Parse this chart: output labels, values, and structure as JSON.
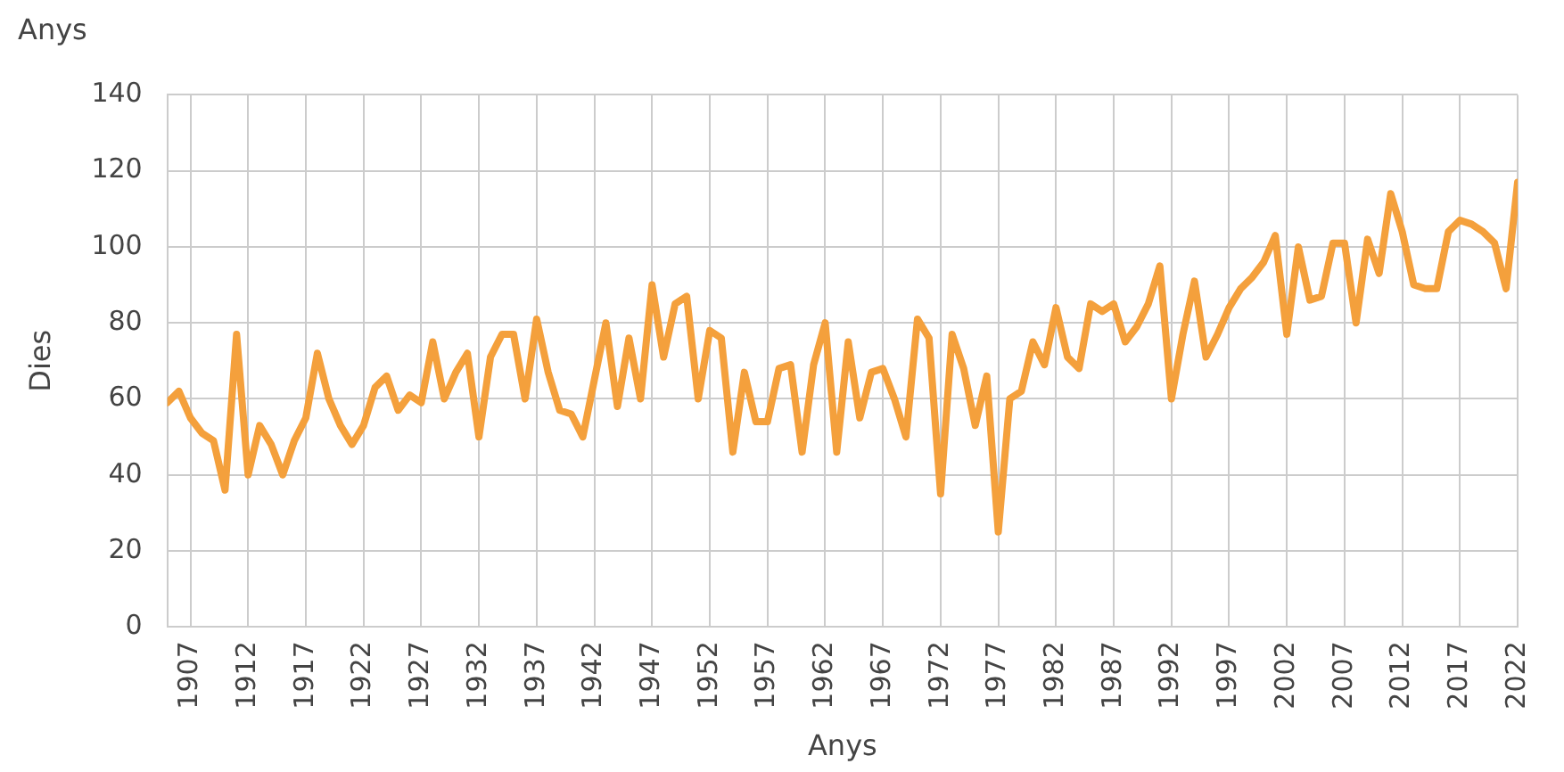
{
  "chart_data": {
    "type": "line",
    "title": "Anys",
    "xlabel": "Anys",
    "ylabel": "Dies",
    "xlim": [
      1905,
      2022
    ],
    "xticks": [
      1907,
      1912,
      1917,
      1922,
      1927,
      1932,
      1937,
      1942,
      1947,
      1952,
      1957,
      1962,
      1967,
      1972,
      1977,
      1982,
      1987,
      1992,
      1997,
      2002,
      2007,
      2012,
      2017,
      2022
    ],
    "ylim": [
      0,
      140
    ],
    "yticks": [
      0,
      20,
      40,
      60,
      80,
      100,
      120,
      140
    ],
    "grid": true,
    "legend": false,
    "marker": "none",
    "line_style": "solid",
    "series": [
      {
        "color": "#f4a03c",
        "x": [
          1905,
          1906,
          1907,
          1908,
          1909,
          1910,
          1911,
          1912,
          1913,
          1914,
          1915,
          1916,
          1917,
          1918,
          1919,
          1920,
          1921,
          1922,
          1923,
          1924,
          1925,
          1926,
          1927,
          1928,
          1929,
          1930,
          1931,
          1932,
          1933,
          1934,
          1935,
          1936,
          1937,
          1938,
          1939,
          1940,
          1941,
          1942,
          1943,
          1944,
          1945,
          1946,
          1947,
          1948,
          1949,
          1950,
          1951,
          1952,
          1953,
          1954,
          1955,
          1956,
          1957,
          1958,
          1959,
          1960,
          1961,
          1962,
          1963,
          1964,
          1965,
          1966,
          1967,
          1968,
          1969,
          1970,
          1971,
          1972,
          1973,
          1974,
          1975,
          1976,
          1977,
          1978,
          1979,
          1980,
          1981,
          1982,
          1983,
          1984,
          1985,
          1986,
          1987,
          1988,
          1989,
          1990,
          1991,
          1992,
          1993,
          1994,
          1995,
          1996,
          1997,
          1998,
          1999,
          2000,
          2001,
          2002,
          2003,
          2004,
          2005,
          2006,
          2007,
          2008,
          2009,
          2010,
          2011,
          2012,
          2013,
          2014,
          2015,
          2016,
          2017,
          2018,
          2019,
          2020,
          2021,
          2022
        ],
        "values": [
          59,
          62,
          55,
          51,
          49,
          36,
          77,
          40,
          53,
          48,
          40,
          49,
          55,
          72,
          60,
          53,
          48,
          53,
          63,
          66,
          57,
          61,
          59,
          75,
          60,
          67,
          72,
          50,
          71,
          77,
          77,
          60,
          81,
          67,
          57,
          56,
          50,
          65,
          80,
          58,
          76,
          60,
          90,
          71,
          85,
          87,
          60,
          78,
          76,
          46,
          67,
          54,
          54,
          68,
          69,
          46,
          69,
          80,
          46,
          75,
          55,
          67,
          68,
          60,
          50,
          81,
          76,
          35,
          77,
          68,
          53,
          66,
          25,
          60,
          62,
          75,
          69,
          84,
          71,
          68,
          85,
          83,
          85,
          75,
          79,
          85,
          95,
          60,
          77,
          91,
          71,
          77,
          84,
          89,
          92,
          96,
          103,
          77,
          100,
          86,
          87,
          101,
          101,
          80,
          102,
          93,
          114,
          104,
          90,
          89,
          89,
          104,
          107,
          106,
          104,
          101,
          89,
          117
        ]
      }
    ]
  }
}
